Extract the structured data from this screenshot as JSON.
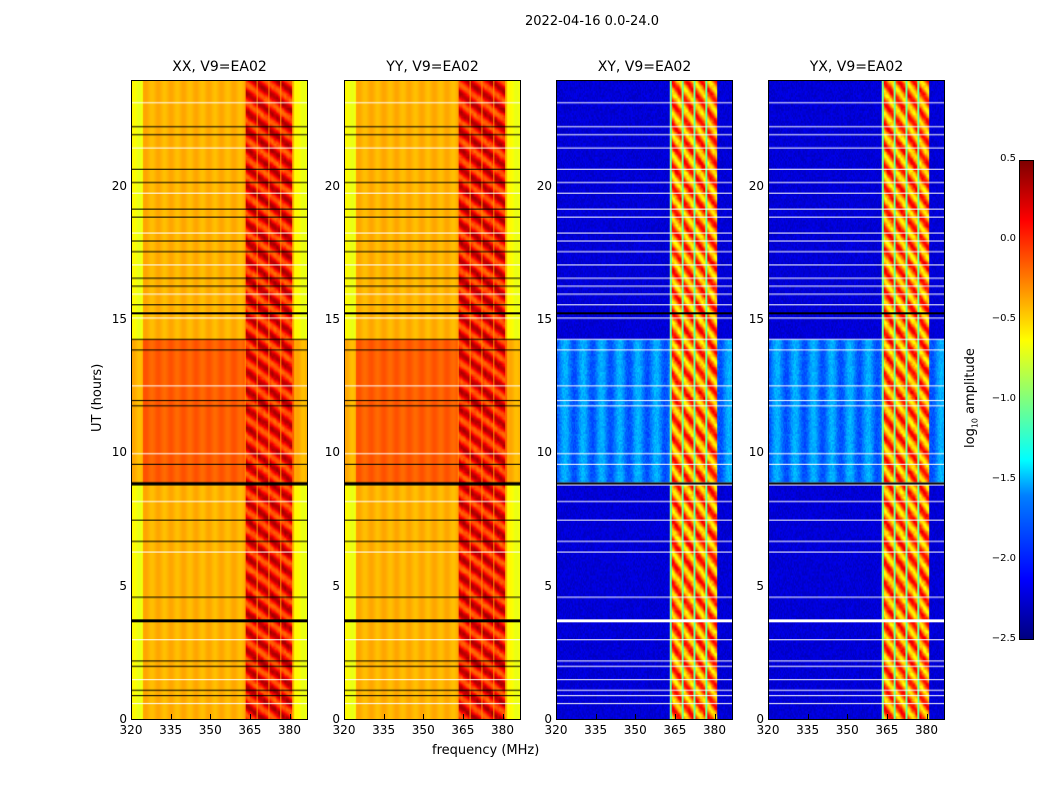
{
  "chart_data": {
    "type": "heatmap",
    "suptitle": "2022-04-16 0.0-24.0",
    "xlabel": "frequency (MHz)",
    "ylabel": "UT (hours)",
    "xlim": [
      320,
      387
    ],
    "ylim": [
      0,
      24
    ],
    "xticks": [
      "320",
      "335",
      "350",
      "365",
      "380"
    ],
    "yticks": [
      "0",
      "5",
      "10",
      "15",
      "20"
    ],
    "panels": [
      {
        "title": "XX, V9=EA02",
        "pol": "parallel"
      },
      {
        "title": "YY, V9=EA02",
        "pol": "parallel"
      },
      {
        "title": "XY, V9=EA02",
        "pol": "cross"
      },
      {
        "title": "YX, V9=EA02",
        "pol": "cross"
      }
    ],
    "colorbar": {
      "label_main": "log",
      "label_sub": "10",
      "label_rest": " amplitude",
      "range": [
        -2.5,
        0.5
      ],
      "ticks": [
        "0.5",
        "0.0",
        "−0.5",
        "−1.0",
        "−1.5",
        "−2.0",
        "−2.5"
      ],
      "colormap": "jet"
    },
    "signal_band_mhz": [
      363,
      381
    ],
    "flagged_times_hours": [
      0.6,
      0.9,
      1.1,
      1.5,
      2.0,
      2.2,
      3.0,
      3.75,
      4.6,
      6.3,
      6.7,
      7.5,
      8.2,
      8.9,
      9.6,
      10.0,
      11.8,
      12.0,
      12.55,
      13.9,
      14.3,
      15.1,
      15.3,
      15.6,
      16.0,
      16.3,
      16.6,
      17.1,
      17.6,
      18.0,
      18.3,
      18.9,
      19.2,
      19.8,
      20.2,
      20.7,
      21.5,
      22.0,
      22.3,
      23.2
    ]
  }
}
